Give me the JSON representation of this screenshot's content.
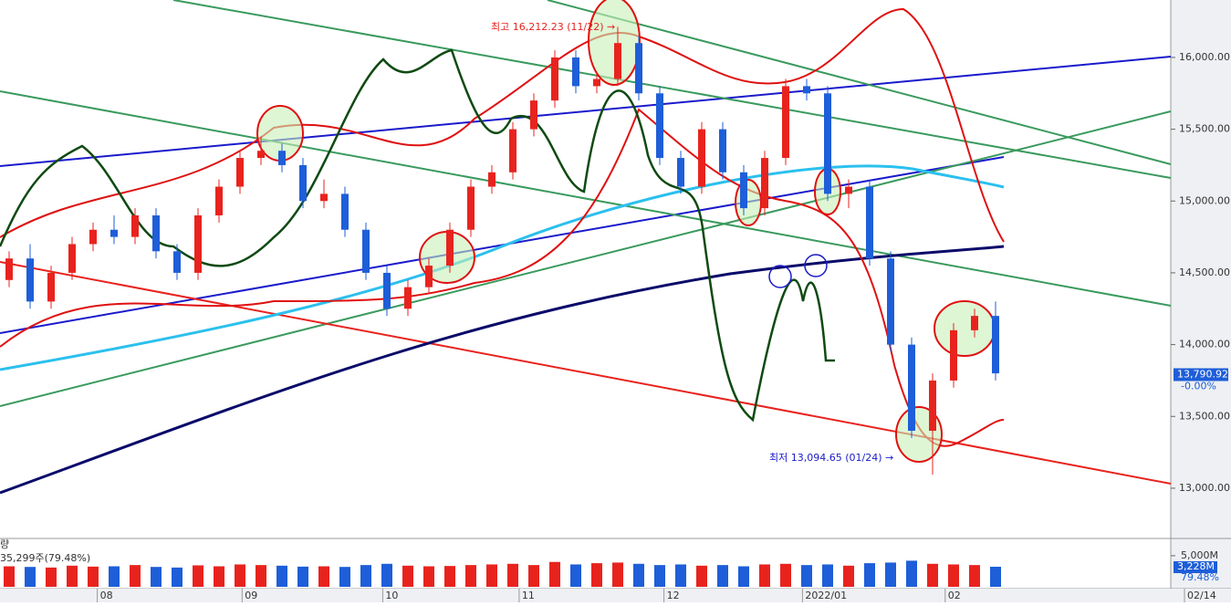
{
  "chart_data": {
    "type": "candlestick",
    "x": [
      0,
      1,
      2,
      3,
      4,
      5,
      6,
      7,
      8,
      9,
      10,
      11,
      12,
      13,
      14,
      15,
      16,
      17,
      18,
      19,
      20,
      21,
      22,
      23,
      24,
      25,
      26,
      27,
      28,
      29,
      30,
      31,
      32,
      33,
      34,
      35,
      36,
      37,
      38,
      39,
      40,
      41,
      42,
      43,
      44,
      45,
      46,
      47
    ],
    "xlim": [
      0,
      56
    ],
    "xticks": [
      {
        "value": 4.2,
        "label": "08"
      },
      {
        "value": 11.1,
        "label": "09"
      },
      {
        "value": 17.8,
        "label": "10"
      },
      {
        "value": 24.3,
        "label": "11"
      },
      {
        "value": 31.2,
        "label": "12"
      },
      {
        "value": 37.8,
        "label": "2022/01"
      },
      {
        "value": 44.6,
        "label": "02"
      },
      {
        "value": 56,
        "label": "02/14"
      }
    ],
    "open": [
      14450,
      14600,
      14300,
      14500,
      14700,
      14800,
      14750,
      14900,
      14650,
      14500,
      14900,
      15100,
      15300,
      15350,
      15250,
      15000,
      15050,
      14800,
      14500,
      14250,
      14400,
      14550,
      14800,
      15100,
      15200,
      15500,
      15700,
      16000,
      15800,
      15850,
      16100,
      15750,
      15300,
      15100,
      15500,
      15200,
      14950,
      15300,
      15800,
      15750,
      15050,
      15100,
      14600,
      14000,
      13400,
      13750,
      14100,
      14200
    ],
    "high": [
      14650,
      14700,
      14550,
      14750,
      14850,
      14900,
      14950,
      14950,
      14700,
      14950,
      15150,
      15350,
      15450,
      15400,
      15300,
      15150,
      15100,
      14850,
      14550,
      14450,
      14600,
      14850,
      15150,
      15250,
      15550,
      15750,
      16050,
      16050,
      15900,
      16212.23,
      16150,
      15800,
      15350,
      15550,
      15550,
      15250,
      15350,
      15850,
      15850,
      15800,
      15150,
      15150,
      14650,
      14050,
      13800,
      14150,
      14250,
      14300
    ],
    "low": [
      14400,
      14250,
      14250,
      14450,
      14650,
      14700,
      14700,
      14600,
      14450,
      14450,
      14850,
      15050,
      15250,
      15200,
      14950,
      14950,
      14750,
      14450,
      14200,
      14200,
      14350,
      14500,
      14750,
      15050,
      15150,
      15450,
      15650,
      15750,
      15750,
      15800,
      15700,
      15250,
      15050,
      15050,
      15150,
      14900,
      14900,
      15250,
      15700,
      15000,
      14950,
      14550,
      13950,
      13350,
      13094.65,
      13700,
      14050,
      13750
    ],
    "close": [
      14600,
      14300,
      14500,
      14700,
      14800,
      14750,
      14900,
      14650,
      14500,
      14900,
      15100,
      15300,
      15350,
      15250,
      15000,
      15050,
      14800,
      14500,
      14250,
      14400,
      14550,
      14800,
      15100,
      15200,
      15500,
      15700,
      16000,
      15800,
      15850,
      16100,
      15750,
      15300,
      15100,
      15500,
      15200,
      14950,
      15300,
      15800,
      15750,
      15050,
      15100,
      14600,
      14000,
      13400,
      13750,
      14100,
      14200,
      13800
    ],
    "volume": [
      3300,
      3200,
      3100,
      3400,
      3250,
      3300,
      3500,
      3200,
      3100,
      3450,
      3300,
      3600,
      3500,
      3400,
      3250,
      3300,
      3200,
      3500,
      3700,
      3400,
      3300,
      3350,
      3500,
      3600,
      3700,
      3500,
      4000,
      3600,
      3800,
      3900,
      3700,
      3500,
      3600,
      3400,
      3500,
      3300,
      3600,
      3700,
      3500,
      3600,
      3400,
      3800,
      3900,
      4200,
      3700,
      3600,
      3500,
      3228
    ],
    "colors": {
      "up": "#e8231e",
      "down": "#1e5ed8"
    },
    "ylim": [
      12650,
      16400
    ],
    "yticks": [
      {
        "value": 13000,
        "label": "13,000.00"
      },
      {
        "value": 13500,
        "label": "13,500.00"
      },
      {
        "value": 14000,
        "label": "14,000.00"
      },
      {
        "value": 14500,
        "label": "14,500.00"
      },
      {
        "value": 15000,
        "label": "15,000.00"
      },
      {
        "value": 15500,
        "label": "15,500.00"
      },
      {
        "value": 16000,
        "label": "16,000.00"
      }
    ],
    "volume_ylim": [
      0,
      6600
    ],
    "volume_yticks": [
      {
        "value": 5000,
        "label": "5,000M"
      }
    ],
    "annotations": {
      "high": "최고 16,212.23 (11/22) →",
      "low": "최저 13,094.65 (01/24) →"
    },
    "last_price": {
      "value": 13790.92,
      "label": "13,790.92",
      "change": "-0.00%"
    },
    "volume_header": "량",
    "volume_info": "35,299주(79.48%)",
    "last_volume": {
      "label": "3,228M",
      "ratio": "79.48%"
    }
  }
}
